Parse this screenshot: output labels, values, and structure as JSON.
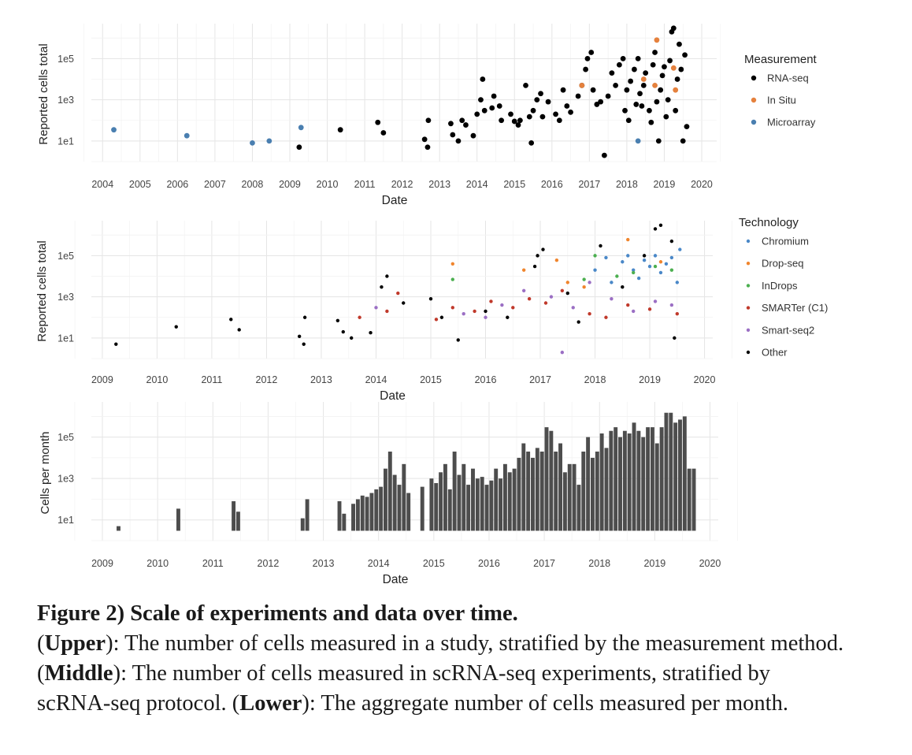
{
  "colors": {
    "rna_seq": "#000000",
    "in_situ": "#e5813d",
    "microarray": "#4a7fb0",
    "chromium": "#4a88c8",
    "drop_seq": "#f0852d",
    "indrops": "#4caf50",
    "smarter_c1": "#c0392b",
    "smart_seq2": "#9b6fc4",
    "other": "#000000",
    "bar": "#4d4d4d",
    "grid": "#e6e6e6"
  },
  "chart_data": [
    {
      "type": "scatter",
      "xlabel": "Date",
      "ylabel": "Reported cells total",
      "y_scale": "log10",
      "xlim": [
        2003.7,
        2020.4
      ],
      "ylim": [
        1,
        5000000
      ],
      "x_ticks": [
        "2004",
        "2005",
        "2006",
        "2007",
        "2008",
        "2009",
        "2010",
        "2011",
        "2012",
        "2013",
        "2014",
        "2015",
        "2016",
        "2017",
        "2018",
        "2019",
        "2020"
      ],
      "y_ticks": [
        {
          "label": "1e1",
          "value": 10
        },
        {
          "label": "1e3",
          "value": 1000
        },
        {
          "label": "1e5",
          "value": 100000
        }
      ],
      "legend_title": "Measurement",
      "legend_position": "right",
      "series": [
        {
          "name": "RNA-seq",
          "color_key": "rna_seq",
          "points": [
            [
              2009.25,
              5
            ],
            [
              2010.35,
              35
            ],
            [
              2011.35,
              80
            ],
            [
              2011.5,
              25
            ],
            [
              2012.6,
              12
            ],
            [
              2012.68,
              5
            ],
            [
              2012.7,
              100
            ],
            [
              2013.3,
              70
            ],
            [
              2013.35,
              20
            ],
            [
              2013.5,
              10
            ],
            [
              2013.6,
              100
            ],
            [
              2013.7,
              60
            ],
            [
              2013.9,
              18
            ],
            [
              2014.0,
              200
            ],
            [
              2014.1,
              1000
            ],
            [
              2014.15,
              10000
            ],
            [
              2014.2,
              300
            ],
            [
              2014.4,
              400
            ],
            [
              2014.45,
              1500
            ],
            [
              2014.6,
              500
            ],
            [
              2014.65,
              100
            ],
            [
              2014.9,
              200
            ],
            [
              2015.0,
              90
            ],
            [
              2015.1,
              60
            ],
            [
              2015.15,
              100
            ],
            [
              2015.3,
              5000
            ],
            [
              2015.4,
              150
            ],
            [
              2015.45,
              8
            ],
            [
              2015.5,
              300
            ],
            [
              2015.6,
              1000
            ],
            [
              2015.7,
              2000
            ],
            [
              2015.75,
              150
            ],
            [
              2015.9,
              800
            ],
            [
              2016.1,
              200
            ],
            [
              2016.2,
              100
            ],
            [
              2016.3,
              3000
            ],
            [
              2016.4,
              500
            ],
            [
              2016.5,
              250
            ],
            [
              2016.7,
              1500
            ],
            [
              2016.8,
              5000
            ],
            [
              2016.9,
              30000
            ],
            [
              2016.95,
              100000
            ],
            [
              2017.05,
              200000
            ],
            [
              2017.1,
              3000
            ],
            [
              2017.2,
              600
            ],
            [
              2017.3,
              800
            ],
            [
              2017.4,
              2
            ],
            [
              2017.5,
              1500
            ],
            [
              2017.6,
              20000
            ],
            [
              2017.7,
              5000
            ],
            [
              2017.8,
              50000
            ],
            [
              2017.9,
              100000
            ],
            [
              2017.95,
              300
            ],
            [
              2018.0,
              3000
            ],
            [
              2018.05,
              100
            ],
            [
              2018.1,
              8000
            ],
            [
              2018.2,
              30000
            ],
            [
              2018.25,
              600
            ],
            [
              2018.3,
              100000
            ],
            [
              2018.35,
              2000
            ],
            [
              2018.4,
              500
            ],
            [
              2018.45,
              5000
            ],
            [
              2018.5,
              20000
            ],
            [
              2018.6,
              300
            ],
            [
              2018.65,
              80
            ],
            [
              2018.7,
              50000
            ],
            [
              2018.75,
              200000
            ],
            [
              2018.8,
              800
            ],
            [
              2018.85,
              10
            ],
            [
              2018.9,
              3000
            ],
            [
              2018.95,
              15000
            ],
            [
              2019.0,
              40000
            ],
            [
              2019.05,
              150
            ],
            [
              2019.1,
              1000
            ],
            [
              2019.15,
              80000
            ],
            [
              2019.2,
              2000000
            ],
            [
              2019.25,
              3000000
            ],
            [
              2019.3,
              300
            ],
            [
              2019.35,
              10000
            ],
            [
              2019.4,
              500000
            ],
            [
              2019.45,
              30000
            ],
            [
              2019.5,
              10
            ],
            [
              2019.55,
              150000
            ],
            [
              2019.6,
              50
            ]
          ]
        },
        {
          "name": "In Situ",
          "color_key": "in_situ",
          "points": [
            [
              2016.8,
              5000
            ],
            [
              2018.45,
              10000
            ],
            [
              2018.8,
              800000
            ],
            [
              2019.25,
              35000
            ],
            [
              2019.3,
              3000
            ],
            [
              2018.75,
              5000
            ]
          ]
        },
        {
          "name": "Microarray",
          "color_key": "microarray",
          "points": [
            [
              2004.3,
              35
            ],
            [
              2006.25,
              18
            ],
            [
              2008.0,
              8
            ],
            [
              2008.45,
              10
            ],
            [
              2009.3,
              45
            ],
            [
              2018.3,
              10
            ]
          ]
        }
      ]
    },
    {
      "type": "scatter",
      "xlabel": "Date",
      "ylabel": "Reported cells total",
      "y_scale": "log10",
      "xlim": [
        2008.8,
        2020.15
      ],
      "ylim": [
        1,
        5000000
      ],
      "x_ticks": [
        "2009",
        "2010",
        "2011",
        "2012",
        "2013",
        "2014",
        "2015",
        "2016",
        "2017",
        "2018",
        "2019",
        "2020"
      ],
      "y_ticks": [
        {
          "label": "1e1",
          "value": 10
        },
        {
          "label": "1e3",
          "value": 1000
        },
        {
          "label": "1e5",
          "value": 100000
        }
      ],
      "legend_title": "Technology",
      "legend_position": "right",
      "series": [
        {
          "name": "Chromium",
          "color_key": "chromium",
          "points": [
            [
              2018.0,
              20000
            ],
            [
              2018.2,
              80000
            ],
            [
              2018.3,
              5000
            ],
            [
              2018.5,
              50000
            ],
            [
              2018.6,
              100000
            ],
            [
              2018.7,
              20000
            ],
            [
              2018.8,
              8000
            ],
            [
              2018.9,
              60000
            ],
            [
              2019.0,
              30000
            ],
            [
              2019.1,
              100000
            ],
            [
              2019.2,
              15000
            ],
            [
              2019.3,
              40000
            ],
            [
              2019.4,
              80000
            ],
            [
              2019.5,
              5000
            ],
            [
              2019.55,
              200000
            ]
          ]
        },
        {
          "name": "Drop-seq",
          "color_key": "drop_seq",
          "points": [
            [
              2015.4,
              40000
            ],
            [
              2016.7,
              20000
            ],
            [
              2017.3,
              60000
            ],
            [
              2017.5,
              5000
            ],
            [
              2017.8,
              3000
            ],
            [
              2018.6,
              600000
            ],
            [
              2019.2,
              50000
            ]
          ]
        },
        {
          "name": "InDrops",
          "color_key": "indrops",
          "points": [
            [
              2015.4,
              7000
            ],
            [
              2017.8,
              7000
            ],
            [
              2018.0,
              100000
            ],
            [
              2018.4,
              10000
            ],
            [
              2018.7,
              15000
            ],
            [
              2019.1,
              30000
            ],
            [
              2019.4,
              20000
            ]
          ]
        },
        {
          "name": "SMARTer (C1)",
          "color_key": "smarter_c1",
          "points": [
            [
              2013.7,
              100
            ],
            [
              2014.2,
              200
            ],
            [
              2014.4,
              1500
            ],
            [
              2015.1,
              80
            ],
            [
              2015.4,
              300
            ],
            [
              2015.8,
              200
            ],
            [
              2016.1,
              600
            ],
            [
              2016.5,
              300
            ],
            [
              2016.8,
              800
            ],
            [
              2017.1,
              500
            ],
            [
              2017.4,
              2000
            ],
            [
              2017.9,
              150
            ],
            [
              2018.2,
              100
            ],
            [
              2018.6,
              400
            ],
            [
              2019.0,
              250
            ],
            [
              2019.5,
              150
            ]
          ]
        },
        {
          "name": "Smart-seq2",
          "color_key": "smart_seq2",
          "points": [
            [
              2014.0,
              300
            ],
            [
              2015.6,
              150
            ],
            [
              2016.0,
              100
            ],
            [
              2016.3,
              400
            ],
            [
              2016.7,
              2000
            ],
            [
              2017.2,
              1000
            ],
            [
              2017.4,
              2
            ],
            [
              2017.6,
              300
            ],
            [
              2017.9,
              5000
            ],
            [
              2018.3,
              800
            ],
            [
              2018.7,
              200
            ],
            [
              2019.1,
              600
            ],
            [
              2019.4,
              400
            ]
          ]
        },
        {
          "name": "Other",
          "color_key": "other",
          "points": [
            [
              2009.25,
              5
            ],
            [
              2010.35,
              35
            ],
            [
              2011.35,
              80
            ],
            [
              2011.5,
              25
            ],
            [
              2012.6,
              12
            ],
            [
              2012.68,
              5
            ],
            [
              2012.7,
              100
            ],
            [
              2013.3,
              70
            ],
            [
              2013.4,
              20
            ],
            [
              2013.55,
              10
            ],
            [
              2013.9,
              18
            ],
            [
              2014.1,
              3000
            ],
            [
              2014.2,
              10000
            ],
            [
              2014.5,
              500
            ],
            [
              2015.0,
              800
            ],
            [
              2015.2,
              100
            ],
            [
              2015.5,
              8
            ],
            [
              2016.0,
              200
            ],
            [
              2016.4,
              100
            ],
            [
              2016.9,
              30000
            ],
            [
              2016.95,
              100000
            ],
            [
              2017.05,
              200000
            ],
            [
              2017.5,
              1500
            ],
            [
              2017.7,
              60
            ],
            [
              2018.1,
              300000
            ],
            [
              2018.5,
              3000
            ],
            [
              2018.9,
              100000
            ],
            [
              2019.1,
              2000000
            ],
            [
              2019.2,
              3000000
            ],
            [
              2019.4,
              500000
            ],
            [
              2019.45,
              10
            ]
          ]
        }
      ]
    },
    {
      "type": "bar",
      "xlabel": "Date",
      "ylabel": "Cells per month",
      "y_scale": "log10",
      "xlim": [
        2008.8,
        2020.15
      ],
      "ylim": [
        1,
        5000000
      ],
      "x_ticks": [
        "2009",
        "2010",
        "2011",
        "2012",
        "2013",
        "2014",
        "2015",
        "2016",
        "2017",
        "2018",
        "2019",
        "2020"
      ],
      "y_ticks": [
        {
          "label": "1e1",
          "value": 10
        },
        {
          "label": "1e3",
          "value": 1000
        },
        {
          "label": "1e5",
          "value": 100000
        }
      ],
      "bar_width_years": 0.07,
      "months": [
        "2009-04",
        "2010-05",
        "2011-05",
        "2011-06",
        "2012-08",
        "2012-09",
        "2013-04",
        "2013-05",
        "2013-07",
        "2013-08",
        "2013-09",
        "2013-10",
        "2013-11",
        "2013-12",
        "2014-01",
        "2014-02",
        "2014-03",
        "2014-04",
        "2014-05",
        "2014-06",
        "2014-07",
        "2014-10",
        "2014-12",
        "2015-01",
        "2015-02",
        "2015-03",
        "2015-04",
        "2015-05",
        "2015-06",
        "2015-07",
        "2015-08",
        "2015-09",
        "2015-10",
        "2015-11",
        "2015-12",
        "2016-01",
        "2016-02",
        "2016-03",
        "2016-04",
        "2016-05",
        "2016-06",
        "2016-07",
        "2016-08",
        "2016-09",
        "2016-10",
        "2016-11",
        "2016-12",
        "2017-01",
        "2017-02",
        "2017-03",
        "2017-04",
        "2017-05",
        "2017-06",
        "2017-07",
        "2017-08",
        "2017-09",
        "2017-10",
        "2017-11",
        "2017-12",
        "2018-01",
        "2018-02",
        "2018-03",
        "2018-04",
        "2018-05",
        "2018-06",
        "2018-07",
        "2018-08",
        "2018-09",
        "2018-10",
        "2018-11",
        "2018-12",
        "2019-01",
        "2019-02",
        "2019-03",
        "2019-04",
        "2019-05",
        "2019-06",
        "2019-07",
        "2019-08",
        "2019-09"
      ],
      "values": [
        5,
        35,
        80,
        25,
        12,
        100,
        80,
        20,
        60,
        100,
        150,
        130,
        200,
        300,
        400,
        3000,
        20000,
        1500,
        500,
        5000,
        200,
        400,
        1000,
        600,
        2000,
        5000,
        300,
        20000,
        1500,
        5000,
        500,
        3000,
        1000,
        1200,
        500,
        800,
        3000,
        1000,
        5000,
        2000,
        3000,
        10000,
        50000,
        20000,
        10000,
        30000,
        20000,
        300000,
        200000,
        20000,
        50000,
        2000,
        5000,
        5000,
        500,
        20000,
        100000,
        10000,
        20000,
        150000,
        30000,
        200000,
        300000,
        100000,
        200000,
        150000,
        500000,
        200000,
        100000,
        300000,
        300000,
        50000,
        300000,
        1500000,
        1500000,
        500000,
        700000,
        1000000,
        3000,
        3000
      ]
    }
  ],
  "caption": {
    "title": "Figure 2) Scale of experiments and data over time.",
    "upper_label": "Upper",
    "upper_text": "The number of cells measured in a study, stratified by the measure­ment method.",
    "middle_label": "Middle",
    "middle_text": "The number of cells measured in scRNA-seq exper­iments, stratified by scRNA-seq protocol.",
    "lower_label": "Lower",
    "lower_text": "The aggregate number of cells measured per month."
  }
}
